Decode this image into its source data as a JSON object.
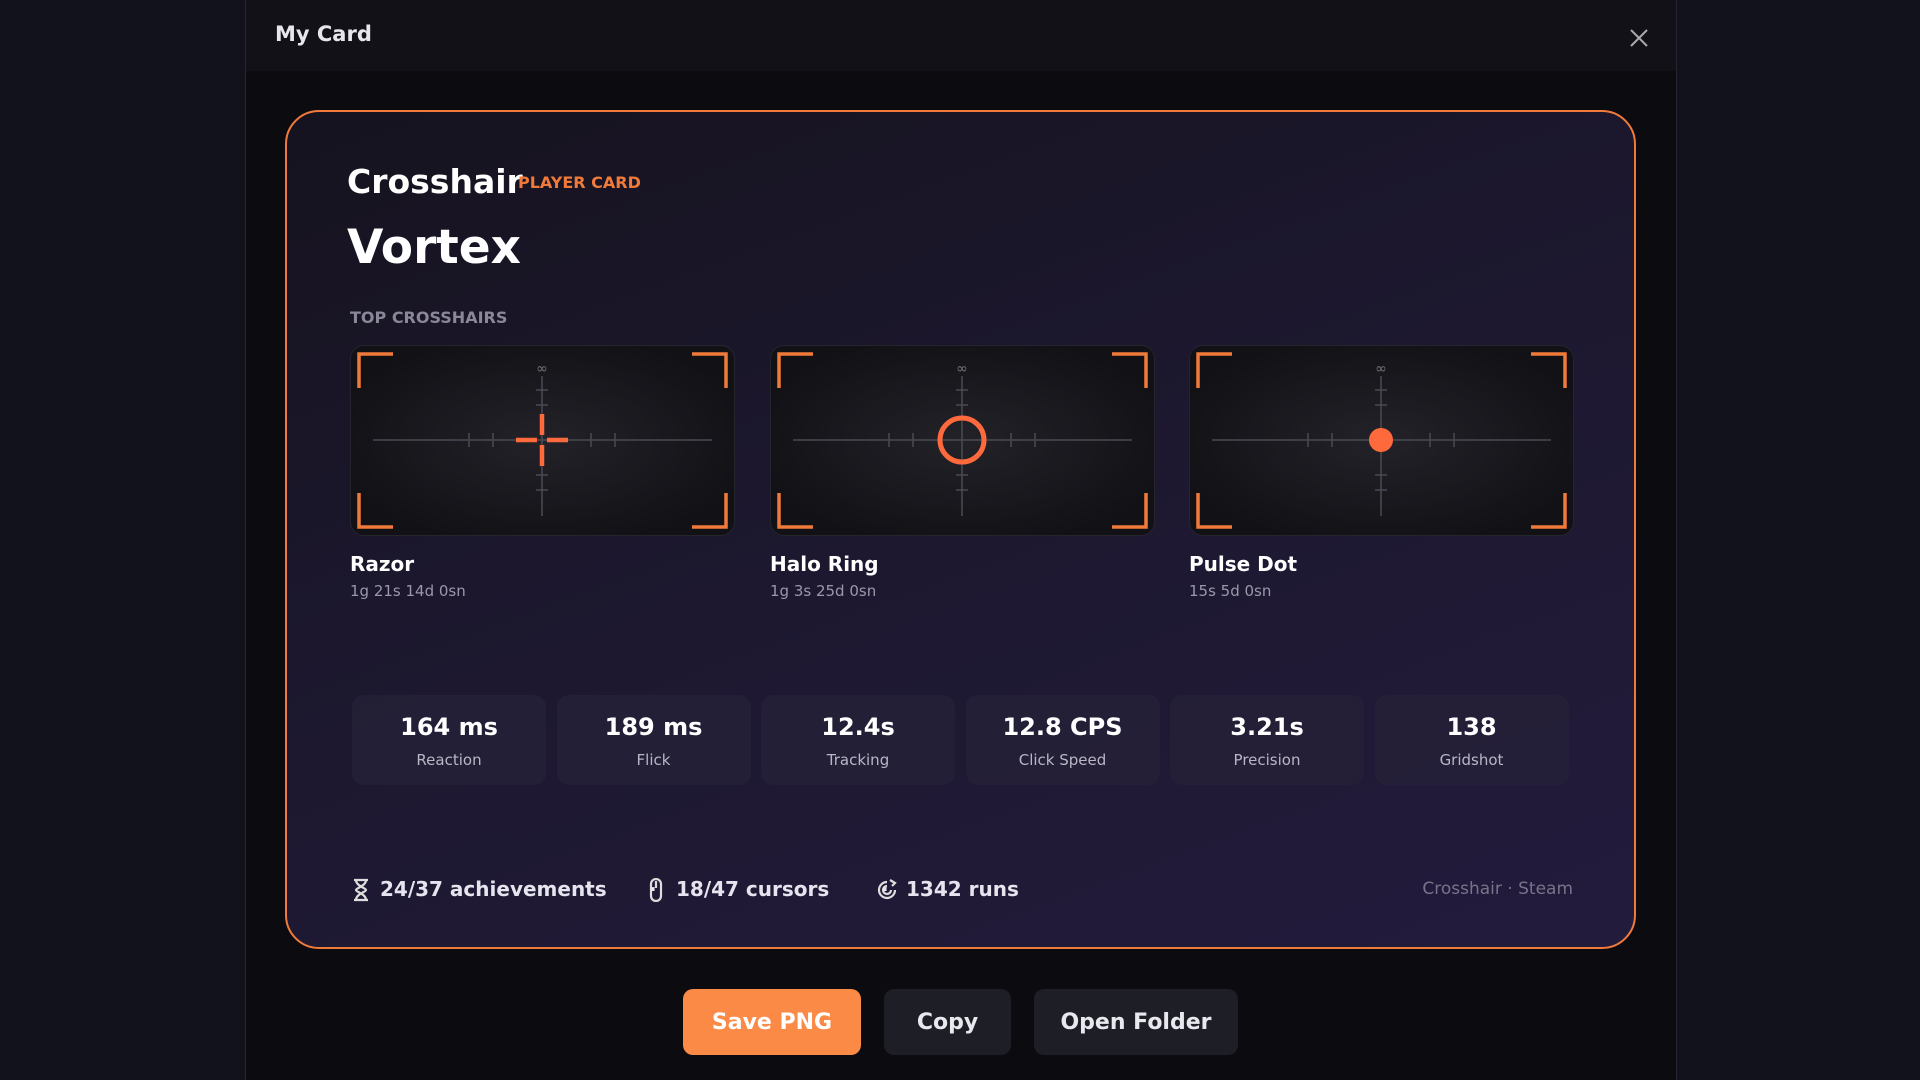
{
  "header": {
    "title": "My Card"
  },
  "card": {
    "brand": "Crosshair",
    "badge": "PLAYER CARD",
    "player_name": "Vortex",
    "section_label": "TOP CROSSHAIRS",
    "crosshairs": [
      {
        "name": "Razor",
        "time": "1g 21s 14d 0sn",
        "marker": "∞"
      },
      {
        "name": "Halo Ring",
        "time": "1g 3s 25d 0sn",
        "marker": "∞"
      },
      {
        "name": "Pulse Dot",
        "time": "15s 5d 0sn",
        "marker": "∞"
      }
    ],
    "stats": [
      {
        "value": "164 ms",
        "label": "Reaction"
      },
      {
        "value": "189 ms",
        "label": "Flick"
      },
      {
        "value": "12.4s",
        "label": "Tracking"
      },
      {
        "value": "12.8 CPS",
        "label": "Click Speed"
      },
      {
        "value": "3.21s",
        "label": "Precision"
      },
      {
        "value": "138",
        "label": "Gridshot"
      }
    ],
    "footer": {
      "achievements": "24/37 achievements",
      "cursors": "18/47 cursors",
      "runs": "1342 runs",
      "separator": "·",
      "source": "Crosshair · Steam"
    }
  },
  "buttons": [
    "Save PNG",
    "Copy",
    "Open Folder"
  ]
}
